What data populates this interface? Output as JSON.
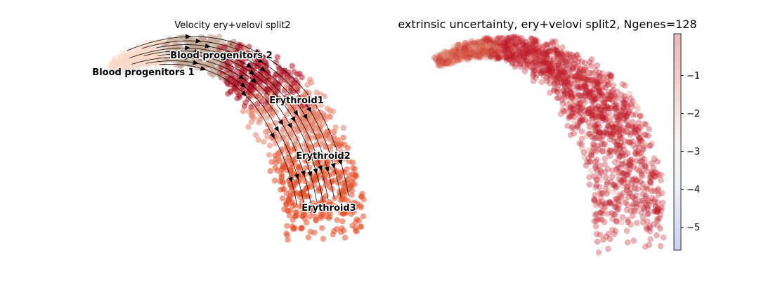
{
  "chart_data": [
    {
      "type": "scatter",
      "title": "Velocity ery+velovi split2",
      "xlabel": "",
      "ylabel": "",
      "grid": false,
      "overlay": "velocity streamlines",
      "clusters": [
        {
          "name": "Blood progenitors 1",
          "color": "#f9d9c9"
        },
        {
          "name": "Blood progenitors 2",
          "color": "#c4a694"
        },
        {
          "name": "Erythroid1",
          "color": "#b5172a"
        },
        {
          "name": "Erythroid2",
          "color": "#e7816b"
        },
        {
          "name": "Erythroid3",
          "color": "#e5502a"
        }
      ]
    },
    {
      "type": "scatter",
      "title": "extrinsic uncertainty, ery+velovi split2, Ngenes=128",
      "xlabel": "",
      "ylabel": "",
      "grid": false,
      "colorbar": {
        "ticks": [
          -1,
          -2,
          -3,
          -4,
          -5
        ],
        "tick_labels": [
          "−1",
          "−2",
          "−3",
          "−4",
          "−5"
        ],
        "range": [
          -5.6,
          0.1
        ],
        "colormap": [
          "#3b4cc0",
          "#f7f7f7",
          "#b40426"
        ]
      }
    }
  ]
}
